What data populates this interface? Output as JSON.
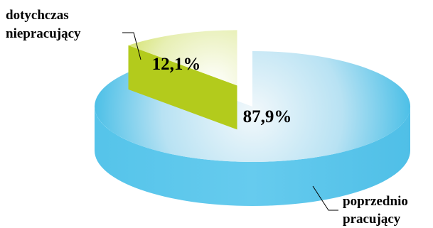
{
  "chart_data": {
    "type": "pie",
    "style": "3d-exploded",
    "slices": [
      {
        "label": "dotychczas niepracujący",
        "label_lines": [
          "dotychczas",
          "niepracujący"
        ],
        "value": 12.1,
        "value_label": "12,1%",
        "color": "#c4d82e",
        "exploded": true
      },
      {
        "label": "poprzednio pracujący",
        "label_lines": [
          "poprzednio",
          "pracujący"
        ],
        "value": 87.9,
        "value_label": "87,9%",
        "color": "#5cc8ec",
        "exploded": false
      }
    ]
  }
}
